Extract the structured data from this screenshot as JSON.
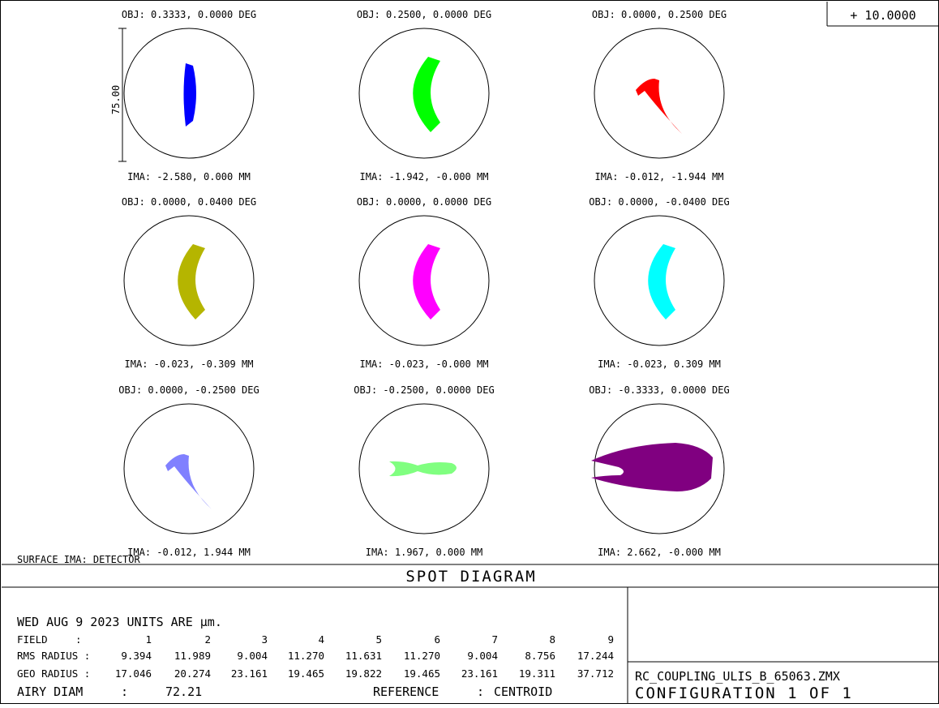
{
  "scale_label": "+ 10.0000",
  "scale_bar_label": "75.00",
  "spots": [
    {
      "obj": "OBJ: 0.3333, 0.0000 DEG",
      "ima": "IMA: -2.580, 0.000 MM",
      "color": "#0000ff",
      "shape": "lens-spot"
    },
    {
      "obj": "OBJ: 0.2500, 0.0000 DEG",
      "ima": "IMA: -1.942, -0.000 MM",
      "color": "#00ff00",
      "shape": "crescent-spot"
    },
    {
      "obj": "OBJ: 0.0000, 0.2500 DEG",
      "ima": "IMA: -0.012, -1.944 MM",
      "color": "#ff0000",
      "shape": "comet-spot"
    },
    {
      "obj": "OBJ: 0.0000, 0.0400 DEG",
      "ima": "IMA: -0.023, -0.309 MM",
      "color": "#b5b500",
      "shape": "crescent-spot"
    },
    {
      "obj": "OBJ: 0.0000, 0.0000 DEG",
      "ima": "IMA: -0.023, -0.000 MM",
      "color": "#ff00ff",
      "shape": "crescent-spot"
    },
    {
      "obj": "OBJ: 0.0000, -0.0400 DEG",
      "ima": "IMA: -0.023, 0.309 MM",
      "color": "#00ffff",
      "shape": "crescent-spot"
    },
    {
      "obj": "OBJ: 0.0000, -0.2500 DEG",
      "ima": "IMA: -0.012, 1.944 MM",
      "color": "#8080ff",
      "shape": "comet-spot"
    },
    {
      "obj": "OBJ: -0.2500, 0.0000 DEG",
      "ima": "IMA: 1.967, 0.000 MM",
      "color": "#80ff80",
      "shape": "fish-spot"
    },
    {
      "obj": "OBJ: -0.3333, 0.0000 DEG",
      "ima": "IMA: 2.662, -0.000 MM",
      "color": "#800080",
      "shape": "fan-spot"
    }
  ],
  "surface_label": "SURFACE IMA: DETECTOR",
  "title": "SPOT DIAGRAM",
  "info": {
    "date_line": "WED AUG 9 2023  UNITS ARE µm.",
    "field_label": "FIELD",
    "field_numbers": [
      "1",
      "2",
      "3",
      "4",
      "5",
      "6",
      "7",
      "8",
      "9"
    ],
    "rms_label": "RMS RADIUS :",
    "rms_values": [
      "9.394",
      "11.989",
      "9.004",
      "11.270",
      "11.631",
      "11.270",
      "9.004",
      "8.756",
      "17.244"
    ],
    "geo_label": "GEO RADIUS :",
    "geo_values": [
      "17.046",
      "20.274",
      "23.161",
      "19.465",
      "19.822",
      "19.465",
      "23.161",
      "19.311",
      "37.712"
    ],
    "airy_label": "AIRY DIAM",
    "airy_value": "72.21",
    "reference_label": "REFERENCE",
    "reference_value": "CENTROID"
  },
  "file_name": "RC_COUPLING_ULIS_B_65063.ZMX",
  "configuration": "CONFIGURATION 1 OF 1"
}
